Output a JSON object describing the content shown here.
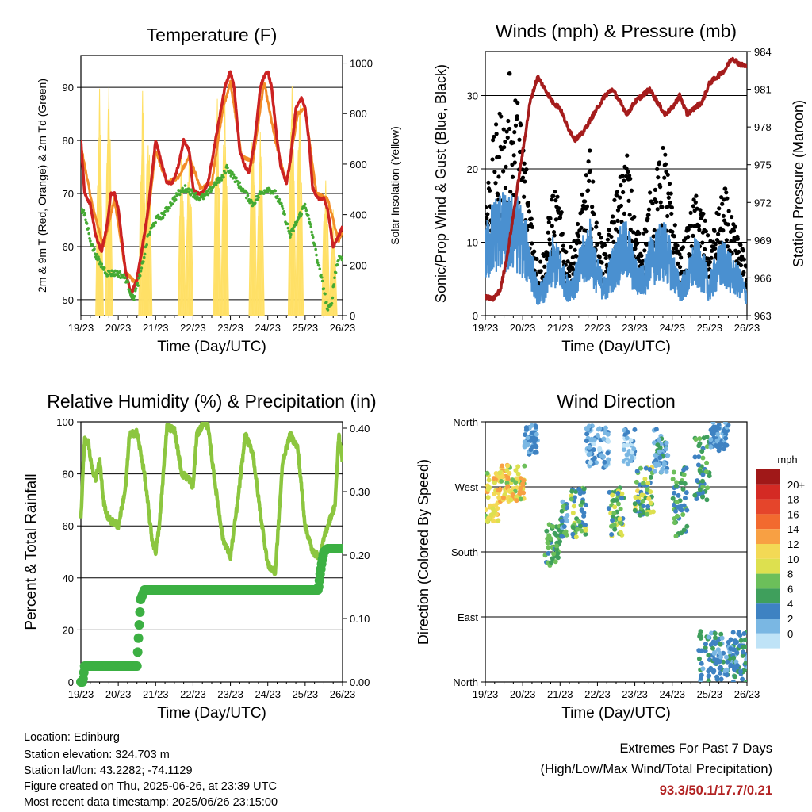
{
  "colors": {
    "temp_2m": "#cc2222",
    "temp_9m": "#f28c28",
    "dewpoint": "#44aa33",
    "solar": "#ffe066",
    "gust": "#000000",
    "wind": "#4a90d0",
    "pressure": "#a51c1c",
    "rh": "#8cc63f",
    "precip": "#3cb043",
    "extremes": "#b22222"
  },
  "chart_data": [
    {
      "type": "line",
      "title": "Temperature (F)",
      "xlabel": "Time (Day/UTC)",
      "ylabel": "2m & 9m T (Red, Orange) & 2m Td (Green)",
      "y2label": "Solar Insolation (Yellow)",
      "x_ticks": [
        "19/23",
        "20/23",
        "21/23",
        "22/23",
        "23/23",
        "24/23",
        "25/23",
        "26/23"
      ],
      "ylim": [
        47,
        96
      ],
      "y_ticks": [
        50,
        60,
        70,
        80,
        90
      ],
      "y2lim": [
        0,
        1030
      ],
      "y2_ticks": [
        0,
        200,
        400,
        600,
        800,
        1000
      ],
      "grid_y": true,
      "series": [
        {
          "name": "2m T",
          "axis": "left",
          "x": [
            0,
            0.05,
            0.1,
            0.25,
            0.4,
            0.55,
            0.7,
            0.8,
            0.9,
            1.0,
            1.2,
            1.35,
            1.5,
            1.6,
            1.8,
            2.0,
            2.15,
            2.3,
            2.45,
            2.6,
            2.75,
            2.9,
            3.0,
            3.1,
            3.25,
            3.4,
            3.6,
            3.85,
            4.0,
            4.1,
            4.25,
            4.4,
            4.5,
            4.65,
            4.8,
            4.9,
            5.0,
            5.1,
            5.25,
            5.35,
            5.5,
            5.6,
            5.75,
            5.9,
            6.0,
            6.1,
            6.2,
            6.35,
            6.5,
            6.6,
            6.75,
            6.9,
            7.0
          ],
          "y": [
            80,
            75,
            70,
            68,
            62,
            59,
            64,
            70,
            70,
            67,
            55,
            51,
            54,
            58,
            67,
            80,
            76,
            72,
            72,
            75,
            80,
            78,
            71,
            70,
            70,
            72,
            80,
            90,
            93,
            90,
            78,
            75,
            74,
            80,
            90,
            92,
            93,
            90,
            80,
            75,
            72,
            76,
            86,
            88,
            86,
            80,
            71,
            69,
            69,
            67,
            60,
            62,
            64
          ]
        },
        {
          "name": "9m T",
          "axis": "left",
          "x": [
            0,
            0.3,
            0.6,
            0.9,
            1.2,
            1.5,
            1.8,
            2.0,
            2.3,
            2.6,
            2.9,
            3.2,
            3.5,
            3.8,
            4.0,
            4.3,
            4.6,
            4.9,
            5.2,
            5.5,
            5.8,
            6.0,
            6.3,
            6.6,
            6.9,
            7.0
          ],
          "y": [
            79,
            68,
            60,
            69,
            55,
            53,
            66,
            78,
            72,
            73,
            77,
            71,
            72,
            86,
            91,
            77,
            76,
            91,
            80,
            72,
            85,
            86,
            70,
            69,
            61,
            63
          ]
        },
        {
          "name": "2m Td",
          "axis": "left",
          "x": [
            0,
            0.1,
            0.3,
            0.5,
            0.7,
            1.0,
            1.2,
            1.4,
            1.6,
            1.8,
            2.0,
            2.2,
            2.4,
            2.6,
            2.8,
            3.0,
            3.2,
            3.4,
            3.6,
            3.8,
            3.9,
            4.0,
            4.2,
            4.4,
            4.6,
            4.8,
            5.0,
            5.2,
            5.4,
            5.6,
            5.8,
            6.0,
            6.2,
            6.4,
            6.5,
            6.6,
            6.7,
            6.8,
            6.9,
            7.0
          ],
          "y": [
            67,
            66,
            60,
            57,
            55,
            55,
            54,
            50,
            55,
            62,
            65,
            66,
            68,
            70,
            71,
            70,
            69,
            70,
            72,
            73,
            75,
            74,
            72,
            70,
            68,
            70,
            71,
            70,
            67,
            62,
            65,
            68,
            62,
            55,
            52,
            48,
            49,
            55,
            58,
            58
          ]
        },
        {
          "name": "Solar Insolation",
          "axis": "right",
          "peaks_x": [
            0.5,
            0.75,
            1.65,
            1.8,
            2.7,
            2.9,
            3.65,
            3.85,
            4.6,
            4.8,
            5.65,
            5.85,
            6.55,
            6.75
          ],
          "peaks_y": [
            900,
            980,
            950,
            860,
            750,
            700,
            900,
            980,
            920,
            880,
            1000,
            960,
            600,
            420
          ]
        }
      ]
    },
    {
      "type": "scatter",
      "title": "Winds (mph) & Pressure (mb)",
      "xlabel": "Time (Day/UTC)",
      "ylabel": "Sonic/Prop Wind & Gust (Blue, Black)",
      "y2label": "Station Pressure (Maroon)",
      "x_ticks": [
        "19/23",
        "20/23",
        "21/23",
        "22/23",
        "23/23",
        "24/23",
        "25/23",
        "26/23"
      ],
      "ylim": [
        0,
        36
      ],
      "y_ticks": [
        0,
        10,
        20,
        30
      ],
      "y2lim": [
        963,
        984
      ],
      "y2_ticks": [
        963,
        966,
        969,
        972,
        975,
        978,
        981,
        984
      ],
      "grid_y": true,
      "series": [
        {
          "name": "Gust",
          "axis": "left",
          "x": [
            0,
            0.2,
            0.4,
            0.6,
            0.8,
            1.0,
            1.2,
            1.4,
            1.6,
            1.8,
            2.0,
            2.2,
            2.4,
            2.6,
            2.8,
            3.0,
            3.2,
            3.4,
            3.6,
            3.8,
            4.0,
            4.2,
            4.4,
            4.6,
            4.8,
            5.0,
            5.2,
            5.4,
            5.6,
            5.8,
            6.0,
            6.2,
            6.4,
            6.6,
            6.8,
            7.0
          ],
          "y": [
            14,
            20,
            24,
            22,
            26,
            22,
            14,
            6,
            8,
            15,
            13,
            7,
            9,
            14,
            19,
            10,
            8,
            12,
            16,
            19,
            11,
            9,
            14,
            17,
            20,
            13,
            7,
            10,
            14,
            13,
            8,
            12,
            15,
            11,
            9,
            6
          ],
          "max_point": [
            0.65,
            33
          ]
        },
        {
          "name": "Wind",
          "axis": "left",
          "x": [
            0,
            0.2,
            0.4,
            0.6,
            0.8,
            1.0,
            1.2,
            1.4,
            1.6,
            1.8,
            2.0,
            2.2,
            2.4,
            2.6,
            2.8,
            3.0,
            3.2,
            3.4,
            3.6,
            3.8,
            4.0,
            4.2,
            4.4,
            4.6,
            4.8,
            5.0,
            5.2,
            5.4,
            5.6,
            5.8,
            6.0,
            6.2,
            6.4,
            6.6,
            6.8,
            7.0
          ],
          "y": [
            9,
            12,
            13,
            12,
            13,
            11,
            8,
            3,
            4,
            8,
            7,
            4,
            5,
            8,
            10,
            6,
            4,
            7,
            9,
            10,
            6,
            5,
            8,
            9,
            10,
            7,
            4,
            5,
            8,
            7,
            4,
            7,
            8,
            6,
            5,
            3
          ]
        },
        {
          "name": "Station Pressure",
          "axis": "right",
          "x": [
            0,
            0.2,
            0.4,
            0.6,
            0.8,
            1.0,
            1.2,
            1.4,
            1.6,
            1.8,
            2.0,
            2.2,
            2.4,
            2.6,
            2.8,
            3.0,
            3.2,
            3.4,
            3.6,
            3.8,
            4.0,
            4.2,
            4.4,
            4.6,
            4.8,
            5.0,
            5.2,
            5.4,
            5.6,
            5.8,
            6.0,
            6.2,
            6.4,
            6.6,
            6.8,
            7.0
          ],
          "y": [
            964.5,
            964.3,
            965,
            968,
            972,
            976,
            980,
            982,
            981,
            980,
            979.5,
            978,
            977,
            977.5,
            978.5,
            979.5,
            980.5,
            981,
            980,
            979,
            980,
            980.5,
            981,
            980,
            979,
            979.5,
            980.5,
            979,
            979.5,
            980,
            981.5,
            982,
            982.5,
            983.5,
            983,
            982.8
          ]
        }
      ]
    },
    {
      "type": "line",
      "title": "Relative Humidity (%) & Precipitation (in)",
      "xlabel": "Time (Day/UTC)",
      "ylabel": "Percent & Total Rainfall",
      "x_ticks": [
        "19/23",
        "20/23",
        "21/23",
        "22/23",
        "23/23",
        "24/23",
        "25/23",
        "26/23"
      ],
      "ylim": [
        0,
        100
      ],
      "y_ticks": [
        0,
        20,
        40,
        60,
        80,
        100
      ],
      "y2lim": [
        0,
        0.41
      ],
      "y2_ticks": [
        "0.00",
        "0.10",
        "0.20",
        "0.30",
        "0.40"
      ],
      "grid_y": true,
      "series": [
        {
          "name": "RH",
          "axis": "left",
          "x": [
            0,
            0.05,
            0.1,
            0.2,
            0.3,
            0.4,
            0.5,
            0.6,
            0.7,
            0.8,
            1.0,
            1.2,
            1.3,
            1.5,
            1.7,
            1.9,
            2.0,
            2.1,
            2.3,
            2.5,
            2.7,
            2.9,
            3.0,
            3.1,
            3.3,
            3.4,
            3.6,
            3.8,
            4.0,
            4.2,
            4.4,
            4.6,
            4.8,
            5.0,
            5.2,
            5.4,
            5.6,
            5.8,
            6.0,
            6.2,
            6.4,
            6.5,
            6.6,
            6.8,
            6.9,
            7.0
          ],
          "y": [
            62,
            80,
            93,
            92,
            82,
            78,
            86,
            70,
            64,
            62,
            60,
            75,
            95,
            96,
            80,
            55,
            50,
            60,
            98,
            97,
            80,
            78,
            75,
            95,
            100,
            98,
            75,
            55,
            48,
            70,
            95,
            88,
            65,
            45,
            42,
            85,
            95,
            90,
            60,
            50,
            48,
            55,
            60,
            68,
            95,
            85
          ]
        },
        {
          "name": "Total Precipitation",
          "axis": "right",
          "x": [
            0,
            0.05,
            0.1,
            1.0,
            1.5,
            1.55,
            1.6,
            1.7,
            1.8,
            2.0,
            3.0,
            4.0,
            5.0,
            6.0,
            6.35,
            6.4,
            6.45,
            6.5,
            6.6,
            7.0
          ],
          "y": [
            0,
            0,
            0.025,
            0.025,
            0.025,
            0.08,
            0.13,
            0.145,
            0.145,
            0.145,
            0.145,
            0.145,
            0.145,
            0.145,
            0.145,
            0.17,
            0.19,
            0.205,
            0.21,
            0.21
          ]
        }
      ]
    },
    {
      "type": "scatter",
      "title": "Wind Direction",
      "xlabel": "Time (Day/UTC)",
      "ylabel": "Direction (Colored By Speed)",
      "x_ticks": [
        "19/23",
        "20/23",
        "21/23",
        "22/23",
        "23/23",
        "24/23",
        "25/23",
        "26/23"
      ],
      "y_ticks": [
        "North",
        "East",
        "South",
        "West",
        "North"
      ],
      "ylim": [
        0,
        360
      ],
      "colorbar_title": "mph",
      "colorbar_labels": [
        "20+",
        "18",
        "16",
        "14",
        "12",
        "10",
        "8",
        "6",
        "4",
        "2",
        "0"
      ],
      "colorbar_colors": [
        "#a01818",
        "#d42a24",
        "#e5452b",
        "#f26a2f",
        "#f8a043",
        "#f3d955",
        "#dde04f",
        "#6cbf5a",
        "#3f9f5c",
        "#3e82c2",
        "#7ab7e3",
        "#bfe3f7"
      ],
      "clusters": [
        {
          "x": [
            0.0,
            0.35
          ],
          "dir": [
            220,
            290
          ],
          "speed": [
            8,
            14
          ]
        },
        {
          "x": [
            0.35,
            1.05
          ],
          "dir": [
            250,
            300
          ],
          "speed": [
            8,
            15
          ]
        },
        {
          "x": [
            1.05,
            1.4
          ],
          "dir": [
            315,
            355
          ],
          "speed": [
            2,
            5
          ]
        },
        {
          "x": [
            1.6,
            2.0
          ],
          "dir": [
            160,
            220
          ],
          "speed": [
            4,
            9
          ]
        },
        {
          "x": [
            2.0,
            2.2
          ],
          "dir": [
            200,
            250
          ],
          "speed": [
            2,
            8
          ]
        },
        {
          "x": [
            2.3,
            2.7
          ],
          "dir": [
            200,
            270
          ],
          "speed": [
            3,
            10
          ]
        },
        {
          "x": [
            2.7,
            3.3
          ],
          "dir": [
            295,
            355
          ],
          "speed": [
            0,
            5
          ]
        },
        {
          "x": [
            3.3,
            3.7
          ],
          "dir": [
            200,
            270
          ],
          "speed": [
            3,
            11
          ]
        },
        {
          "x": [
            3.7,
            4.0
          ],
          "dir": [
            300,
            350
          ],
          "speed": [
            0,
            5
          ]
        },
        {
          "x": [
            4.0,
            4.5
          ],
          "dir": [
            230,
            300
          ],
          "speed": [
            3,
            12
          ]
        },
        {
          "x": [
            4.5,
            4.9
          ],
          "dir": [
            290,
            350
          ],
          "speed": [
            1,
            6
          ]
        },
        {
          "x": [
            5.0,
            5.4
          ],
          "dir": [
            200,
            300
          ],
          "speed": [
            3,
            9
          ]
        },
        {
          "x": [
            5.6,
            6.0
          ],
          "dir": [
            250,
            340
          ],
          "speed": [
            3,
            8
          ]
        },
        {
          "x": [
            6.0,
            6.5
          ],
          "dir": [
            320,
            360
          ],
          "speed": [
            2,
            5
          ]
        },
        {
          "x": [
            5.7,
            7.0
          ],
          "dir": [
            0,
            70
          ],
          "speed": [
            2,
            6
          ]
        }
      ]
    }
  ],
  "station": {
    "location": "Location: Edinburg",
    "elevation": "Station elevation: 324.703 m",
    "latlon": "Station lat/lon: 43.2282; -74.1129",
    "created": "Figure created on Thu, 2025-06-26, at 23:39 UTC",
    "timestamp": "Most recent data timestamp: 2025/06/26 23:15:00"
  },
  "extremes": {
    "heading": "Extremes For Past 7 Days",
    "subheading": "(High/Low/Max Wind/Total Precipitation)",
    "values": "93.3/50.1/17.7/0.21"
  }
}
